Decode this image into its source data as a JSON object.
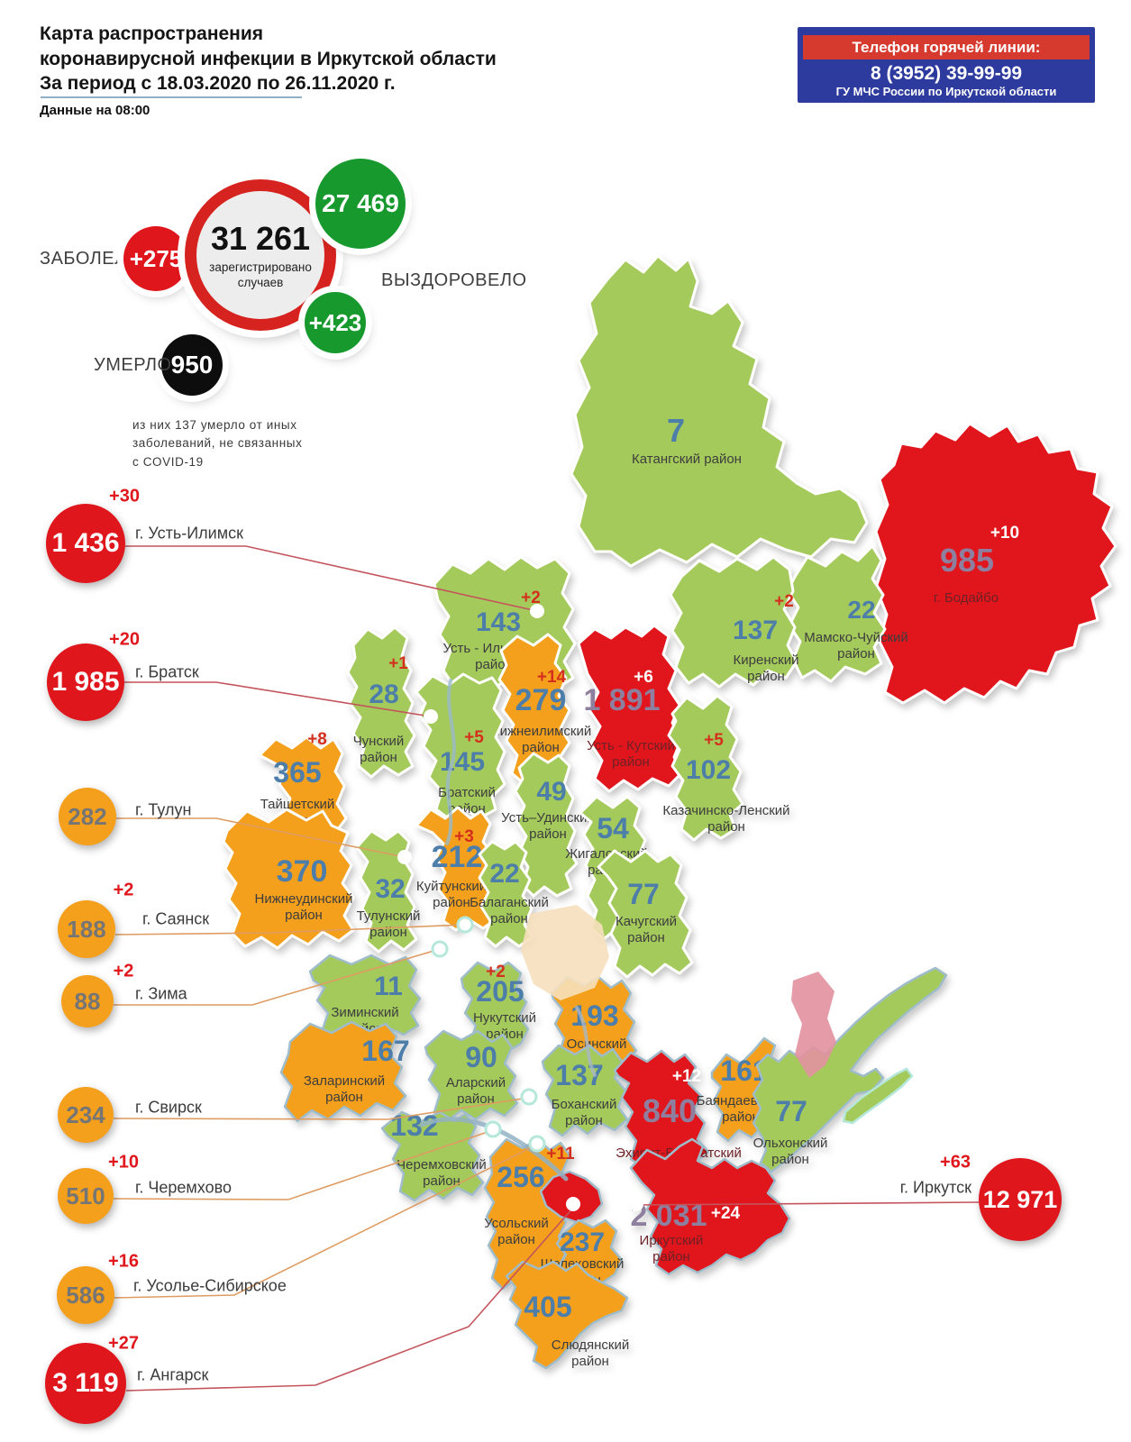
{
  "header": {
    "title": "Карта распространения\nкоронавирусной инфекции в Иркутской области\nЗа период с 18.03.2020 по 26.11.2020 г.",
    "data_as_of": "Данные на 08:00"
  },
  "hotline": {
    "heading": "Телефон горячей линии:",
    "phone": "8 (3952) 39-99-99",
    "org": "ГУ МЧС России по Иркутской области"
  },
  "summary": {
    "sick_label": "ЗАБОЛЕЛО",
    "sick_delta": "+275",
    "registered_value": "31 261",
    "registered_caption": "зарегистрировано\nслучаев",
    "recovered_value": "27 469",
    "recovered_label": "ВЫЗДОРОВЕЛО",
    "recovered_delta": "+423",
    "died_label": "УМЕРЛО",
    "died_value": "950",
    "died_note": "из них 137 умерло от иных\nзаболеваний, не связанных\nс COVID-19"
  },
  "colors": {
    "low": "#a5ca5c",
    "medium": "#f4a01d",
    "high": "#e0161d",
    "stroke_north": "#ffffff",
    "stroke_south": "#9fbcca",
    "num_default": "#4d7ea9",
    "num_on_high": "#8f7f9f",
    "delta_default": "#d42f1f",
    "delta_on_high": "#ffffff",
    "name_default": "#3e3e3e",
    "name_on_high": "#6e2126",
    "leader_red": "#c4545c",
    "leader_orange": "#de9c62",
    "river": "#93b3c5",
    "dot_ring": "#b5e8da"
  },
  "cities": [
    {
      "id": "ust_ilimsk",
      "label": "г. Усть-Илимск",
      "value": "1 436",
      "delta": "+30",
      "level": "red"
    },
    {
      "id": "bratsk",
      "label": "г. Братск",
      "value": "1 985",
      "delta": "+20",
      "level": "red"
    },
    {
      "id": "tulun",
      "label": "г. Тулун",
      "value": "282",
      "delta": "",
      "level": "orange"
    },
    {
      "id": "sayansk",
      "label": "г. Саянск",
      "value": "188",
      "delta": "+2",
      "level": "orange"
    },
    {
      "id": "zima",
      "label": "г. Зима",
      "value": "88",
      "delta": "+2",
      "level": "orange"
    },
    {
      "id": "svirsk",
      "label": "г. Свирск",
      "value": "234",
      "delta": "",
      "level": "orange"
    },
    {
      "id": "cheremkhovo",
      "label": "г. Черемхово",
      "value": "510",
      "delta": "+10",
      "level": "orange"
    },
    {
      "id": "usolye",
      "label": "г. Усолье-Сибирское",
      "value": "586",
      "delta": "+16",
      "level": "orange"
    },
    {
      "id": "angarsk",
      "label": "г. Ангарск",
      "value": "3 119",
      "delta": "+27",
      "level": "red"
    },
    {
      "id": "irkutsk",
      "label": "г. Иркутск",
      "value": "12 971",
      "delta": "+63",
      "level": "red"
    }
  ],
  "map": {
    "districts": [
      {
        "id": "katangsky",
        "name": "Катангский район",
        "value": "7",
        "delta": "",
        "level": "low"
      },
      {
        "id": "bodaibinsky",
        "name": "г. Бодайбо",
        "value": "985",
        "delta": "+10",
        "level": "high"
      },
      {
        "id": "mamsko_chuisky",
        "name": "Мамско-Чуйский район",
        "value": "22",
        "delta": "",
        "level": "low"
      },
      {
        "id": "kirensky",
        "name": "Киренский район",
        "value": "137",
        "delta": "+2",
        "level": "low"
      },
      {
        "id": "ust_ilimsky",
        "name": "Усть - Илимский район",
        "value": "143",
        "delta": "+2",
        "level": "low"
      },
      {
        "id": "ust_kutsky",
        "name": "Усть - Кутский район",
        "value": "1 891",
        "delta": "+6",
        "level": "high"
      },
      {
        "id": "nizhneilimsky",
        "name": "Нижнеилимский район",
        "value": "279",
        "delta": "+14",
        "level": "medium"
      },
      {
        "id": "chunsky",
        "name": "Чунский район",
        "value": "28",
        "delta": "+1",
        "level": "low"
      },
      {
        "id": "bratsky",
        "name": "Братский район",
        "value": "145",
        "delta": "+5",
        "level": "low"
      },
      {
        "id": "kazachinsko_lensky",
        "name": "Казачинско-Ленский район",
        "value": "102",
        "delta": "+5",
        "level": "low"
      },
      {
        "id": "ust_udinsky",
        "name": "Усть–Удинский район",
        "value": "49",
        "delta": "",
        "level": "low"
      },
      {
        "id": "zhigalovsky",
        "name": "Жигаловский район",
        "value": "54",
        "delta": "",
        "level": "low"
      },
      {
        "id": "kachugsky",
        "name": "Качугский район",
        "value": "77",
        "delta": "",
        "level": "low"
      },
      {
        "id": "taishetsky",
        "name": "Тайшетский район",
        "value": "365",
        "delta": "+8",
        "level": "medium"
      },
      {
        "id": "nizhneudinsky",
        "name": "Нижнеудинский район",
        "value": "370",
        "delta": "",
        "level": "medium"
      },
      {
        "id": "tulunsky",
        "name": "Тулунский район",
        "value": "32",
        "delta": "",
        "level": "low"
      },
      {
        "id": "kuitunsky",
        "name": "Куйтунский район",
        "value": "212",
        "delta": "+3",
        "level": "medium"
      },
      {
        "id": "balagansky",
        "name": "Балаганский район",
        "value": "22",
        "delta": "",
        "level": "low"
      },
      {
        "id": "ziminsky",
        "name": "Зиминский район",
        "value": "11",
        "delta": "",
        "level": "low"
      },
      {
        "id": "nukutsky",
        "name": "Нукутский район",
        "value": "205",
        "delta": "+2",
        "level": "low"
      },
      {
        "id": "osinsky",
        "name": "Осинский район",
        "value": "193",
        "delta": "",
        "level": "medium"
      },
      {
        "id": "zalarinsky",
        "name": "Заларинский район",
        "value": "167",
        "delta": "",
        "level": "medium"
      },
      {
        "id": "alarsky",
        "name": "Аларский район",
        "value": "90",
        "delta": "",
        "level": "low"
      },
      {
        "id": "bokhansky",
        "name": "Боханский район",
        "value": "137",
        "delta": "",
        "level": "low"
      },
      {
        "id": "ekhirit",
        "name": "Эхирит-Булагатский район",
        "value": "840",
        "delta": "+12",
        "level": "high"
      },
      {
        "id": "bayandaevsky",
        "name": "Баяндаевский район",
        "value": "161",
        "delta": "",
        "level": "medium"
      },
      {
        "id": "olkhonsky",
        "name": "Ольхонский район",
        "value": "77",
        "delta": "",
        "level": "low"
      },
      {
        "id": "cheremkhovsky",
        "name": "Черемховский район",
        "value": "132",
        "delta": "",
        "level": "low"
      },
      {
        "id": "usolsky",
        "name": "Усольский район",
        "value": "256",
        "delta": "+11",
        "level": "medium"
      },
      {
        "id": "angarsk_area",
        "name": "",
        "value": "",
        "delta": "",
        "level": "high"
      },
      {
        "id": "shelekhovsky",
        "name": "Шелеховский район",
        "value": "237",
        "delta": "",
        "level": "medium"
      },
      {
        "id": "irkutsky",
        "name": "Иркутский район",
        "value": "2 031",
        "delta": "+24",
        "level": "high"
      },
      {
        "id": "slyudyansky",
        "name": "Слюдянский район",
        "value": "405",
        "delta": "",
        "level": "medium"
      }
    ]
  }
}
